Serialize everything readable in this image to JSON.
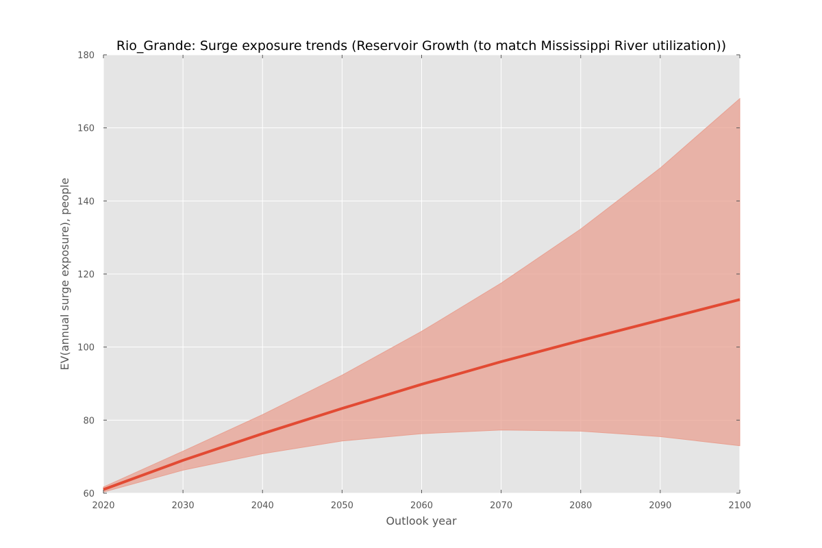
{
  "chart_data": {
    "type": "line",
    "title": "Rio_Grande: Surge exposure trends (Reservoir Growth (to match Mississippi River utilization))",
    "xlabel": "Outlook year",
    "ylabel": "EV(annual surge exposure), people",
    "xlim": [
      2020,
      2100
    ],
    "ylim": [
      60,
      180
    ],
    "xticks": [
      2020,
      2030,
      2040,
      2050,
      2060,
      2070,
      2080,
      2090,
      2100
    ],
    "yticks": [
      60,
      80,
      100,
      120,
      140,
      160,
      180
    ],
    "grid": true,
    "x": [
      2020,
      2030,
      2040,
      2050,
      2060,
      2070,
      2080,
      2090,
      2100
    ],
    "series": [
      {
        "values": [
          61.0,
          69.0,
          76.3,
          83.2,
          89.8,
          96.0,
          101.8,
          107.4,
          113.0
        ],
        "lower": [
          60.3,
          66.3,
          70.8,
          74.3,
          76.3,
          77.3,
          77.0,
          75.5,
          73.0
        ],
        "upper": [
          61.7,
          71.5,
          81.5,
          92.3,
          104.3,
          117.5,
          132.3,
          149.0,
          168.0
        ],
        "color": "#e24a33",
        "band_color": "#e8a091"
      }
    ],
    "colors": {
      "plot_background": "#e5e5e5",
      "grid": "#ffffff",
      "tick": "#555555"
    }
  }
}
